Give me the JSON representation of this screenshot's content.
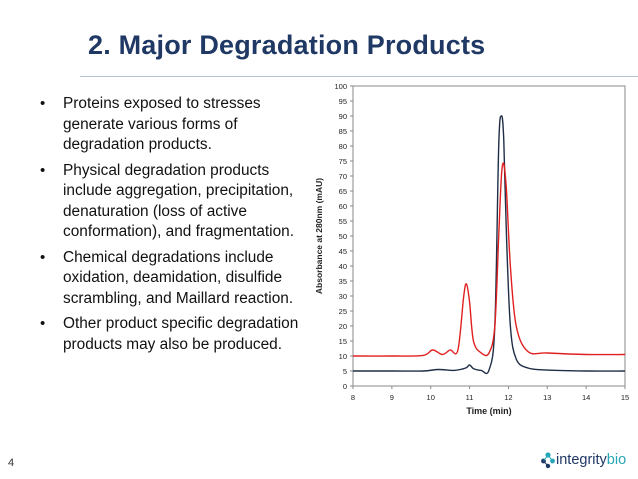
{
  "slide": {
    "title": "2. Major Degradation Products",
    "page_number": "4"
  },
  "bullets": [
    "Proteins exposed to stresses generate various forms of degradation products.",
    "Physical degradation products include aggregation, precipitation, denaturation (loss of active conformation), and fragmentation.",
    "Chemical degradations include oxidation, deamidation, disulfide scrambling, and Maillard reaction.",
    "Other product specific degradation products may also be produced."
  ],
  "bullet_glyph": "•",
  "logo": {
    "text_main": "integrity",
    "text_accent": "bio",
    "icon": "molecule-icon",
    "colors": {
      "main": "#1f3864",
      "accent": "#26a6b8"
    }
  },
  "chart_data": {
    "type": "line",
    "title": "",
    "xlabel": "Time (min)",
    "ylabel": "Absorbance at 280nm (mAU)",
    "xlim": [
      8,
      15
    ],
    "ylim": [
      0,
      100
    ],
    "xticks": [
      8,
      9,
      10,
      11,
      12,
      13,
      14,
      15
    ],
    "yticks": [
      0,
      5,
      10,
      15,
      20,
      25,
      30,
      35,
      40,
      45,
      50,
      55,
      60,
      65,
      70,
      75,
      80,
      85,
      90,
      95,
      100
    ],
    "grid": false,
    "series": [
      {
        "color": "#1f2d46",
        "x": [
          8.0,
          9.0,
          9.8,
          10.2,
          10.6,
          10.9,
          11.0,
          11.1,
          11.3,
          11.5,
          11.65,
          11.75,
          11.82,
          11.88,
          11.95,
          12.05,
          12.2,
          12.5,
          13.0,
          14.0,
          15.0
        ],
        "y": [
          5,
          5,
          5,
          5.5,
          5.2,
          6,
          7,
          5.8,
          5.2,
          5.3,
          20,
          80,
          90,
          82,
          50,
          20,
          9,
          6,
          5.3,
          5,
          5
        ]
      },
      {
        "color": "#e02020",
        "x": [
          8.0,
          9.0,
          9.8,
          10.05,
          10.3,
          10.5,
          10.7,
          10.85,
          10.92,
          11.0,
          11.1,
          11.3,
          11.5,
          11.65,
          11.75,
          11.82,
          11.88,
          11.95,
          12.05,
          12.2,
          12.5,
          13.0,
          14.0,
          15.0
        ],
        "y": [
          10,
          10,
          10.2,
          12,
          10.5,
          12,
          12,
          30,
          34,
          28,
          15,
          11,
          11,
          20,
          50,
          70,
          74,
          65,
          40,
          20,
          11.5,
          11,
          10.5,
          10.5
        ]
      }
    ]
  }
}
